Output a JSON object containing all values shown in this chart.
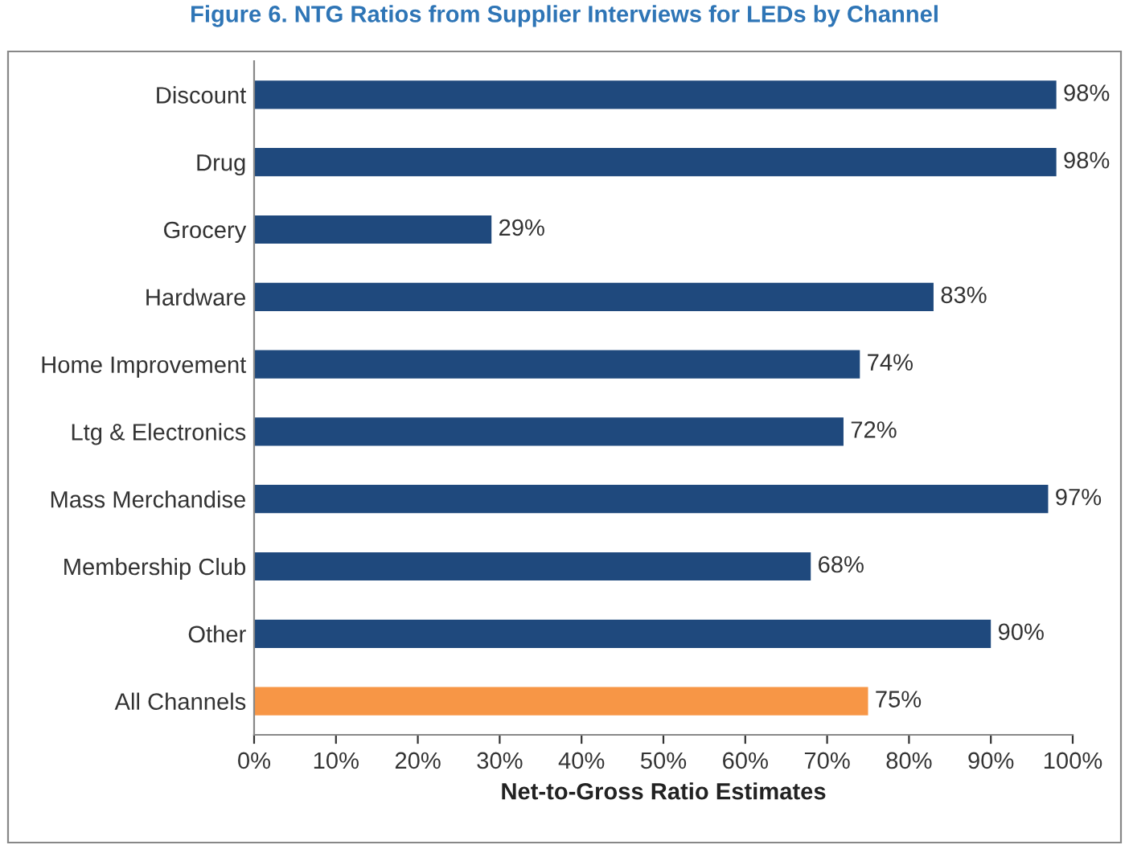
{
  "chart_data": {
    "type": "bar",
    "orientation": "horizontal",
    "title": "Figure 6. NTG Ratios from Supplier Interviews for LEDs by Channel",
    "xlabel": "Net-to-Gross Ratio Estimates",
    "categories": [
      "Discount",
      "Drug",
      "Grocery",
      "Hardware",
      "Home Improvement",
      "Ltg & Electronics",
      "Mass Merchandise",
      "Membership Club",
      "Other",
      "All Channels"
    ],
    "values": [
      98,
      98,
      29,
      83,
      74,
      72,
      97,
      68,
      90,
      75
    ],
    "value_labels": [
      "98%",
      "98%",
      "29%",
      "83%",
      "74%",
      "72%",
      "97%",
      "68%",
      "90%",
      "75%"
    ],
    "colors": [
      "#1f497d",
      "#1f497d",
      "#1f497d",
      "#1f497d",
      "#1f497d",
      "#1f497d",
      "#1f497d",
      "#1f497d",
      "#1f497d",
      "#f79646"
    ],
    "xlim": [
      0,
      100
    ],
    "xticks": [
      {
        "value": 0,
        "label": "0%"
      },
      {
        "value": 10,
        "label": "10%"
      },
      {
        "value": 20,
        "label": "20%"
      },
      {
        "value": 30,
        "label": "30%"
      },
      {
        "value": 40,
        "label": "40%"
      },
      {
        "value": 50,
        "label": "50%"
      },
      {
        "value": 60,
        "label": "60%"
      },
      {
        "value": 70,
        "label": "70%"
      },
      {
        "value": 80,
        "label": "80%"
      },
      {
        "value": 90,
        "label": "90%"
      },
      {
        "value": 100,
        "label": "100%"
      }
    ],
    "grid": false,
    "legend": false
  }
}
